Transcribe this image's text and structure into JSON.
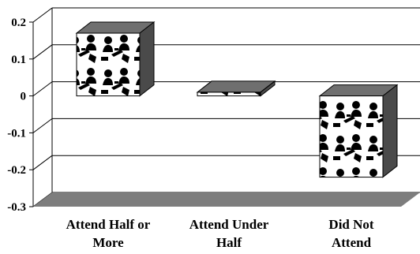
{
  "chart_data": {
    "type": "bar",
    "three_d": true,
    "categories": [
      [
        "Attend Half or",
        "More"
      ],
      [
        "Attend Under",
        "Half"
      ],
      [
        "Did Not",
        "Attend"
      ]
    ],
    "values": [
      0.17,
      0.01,
      -0.22
    ],
    "yticks": [
      "0.2",
      "0.1",
      "0",
      "-0.1",
      "-0.2",
      "-0.3"
    ],
    "ylim": [
      -0.3,
      0.2
    ],
    "grid": true,
    "legend": false,
    "title": "",
    "xlabel": "",
    "ylabel": "",
    "fill_pattern": "picture-icons",
    "colors": {
      "bar_side": "#4a4a4a",
      "bar_top": "#6f6f6f",
      "floor": "#7d7d7d",
      "grid": "#000000",
      "icon": "#000000"
    }
  }
}
